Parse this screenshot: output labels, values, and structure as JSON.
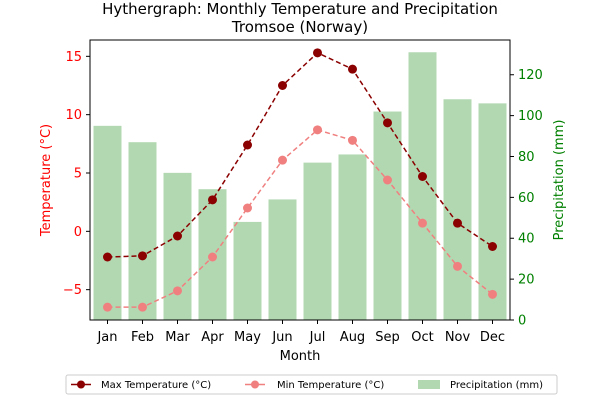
{
  "chart_data": {
    "type": "bar+line",
    "title": "Hythergraph: Monthly Temperature and Precipitation",
    "subtitle": "Tromsoe (Norway)",
    "xlabel": "Month",
    "ylabel_left": "Temperature (°C)",
    "ylabel_right": "Precipitation (mm)",
    "categories": [
      "Jan",
      "Feb",
      "Mar",
      "Apr",
      "May",
      "Jun",
      "Jul",
      "Aug",
      "Sep",
      "Oct",
      "Nov",
      "Dec"
    ],
    "ylim_left": [
      -7.6,
      16.4
    ],
    "ylim_right": [
      0,
      137
    ],
    "yticks_left": [
      -5,
      0,
      5,
      10,
      15
    ],
    "yticks_right": [
      0,
      20,
      40,
      60,
      80,
      100,
      120
    ],
    "grid": false,
    "legend_position": "bottom",
    "series": [
      {
        "name": "Max Temperature (°C)",
        "axis": "left",
        "kind": "line",
        "color": "#8b0000",
        "values": [
          -2.2,
          -2.1,
          -0.4,
          2.7,
          7.4,
          12.5,
          15.3,
          13.9,
          9.3,
          4.7,
          0.7,
          -1.3
        ]
      },
      {
        "name": "Min Temperature (°C)",
        "axis": "left",
        "kind": "line",
        "color": "#f08080",
        "values": [
          -6.5,
          -6.5,
          -5.1,
          -2.2,
          2.0,
          6.1,
          8.7,
          7.8,
          4.4,
          0.7,
          -3.0,
          -5.4
        ]
      },
      {
        "name": "Precipitation (mm)",
        "axis": "right",
        "kind": "bar",
        "color": "#b2d8b2",
        "values": [
          95,
          87,
          72,
          64,
          48,
          59,
          77,
          81,
          102,
          131,
          108,
          106
        ]
      }
    ],
    "colors": {
      "left_axis": "#ff0000",
      "right_axis": "#008000"
    }
  }
}
